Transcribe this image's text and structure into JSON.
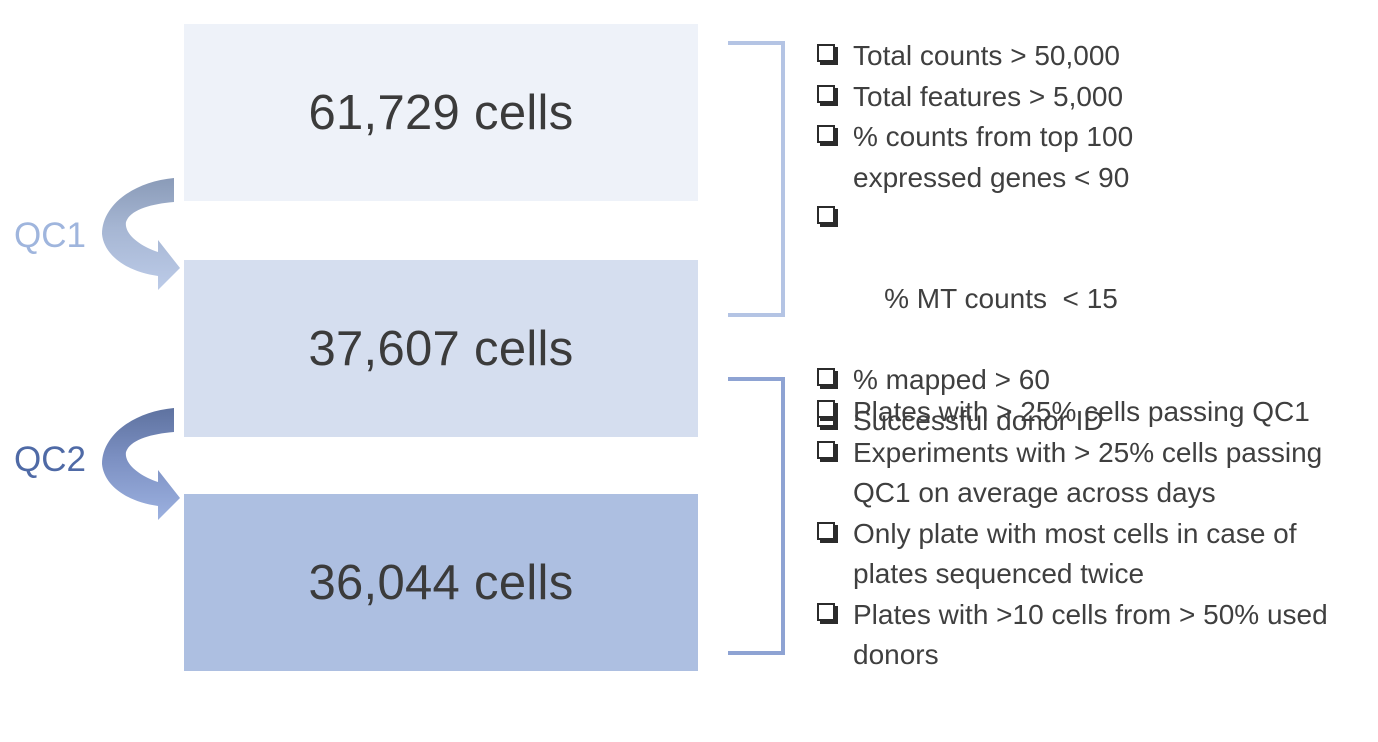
{
  "stages": [
    {
      "label": "61,729 cells"
    },
    {
      "label": "37,607 cells"
    },
    {
      "label": "36,044 cells"
    }
  ],
  "qc_steps": [
    {
      "label": "QC1",
      "color": "#9fb5dd",
      "criteria": [
        "Total counts > 50,000",
        "Total features > 5,000",
        "% counts from top 100 expressed genes < 90",
        "% MT counts  < 15",
        "% mapped > 60",
        "Successful donor ID"
      ]
    },
    {
      "label": "QC2",
      "color": "#4f6aa6",
      "criteria": [
        "Plates with > 25% cells passing QC1",
        "Experiments with > 25% cells passing QC1 on average across days",
        "Only plate with most cells in case of plates sequenced twice",
        "Plates with >10 cells from > 50% used donors"
      ]
    }
  ],
  "colors": {
    "stage1_fill": "#eef2f9",
    "stage2_fill": "#d5deef",
    "stage3_fill": "#adbfe1",
    "bracket1": "#b4c4e4",
    "bracket2": "#8ea3d3"
  },
  "icons": {
    "qc_arrow": "curved-arrow-icon",
    "criterion_marker": "checkbox-icon"
  }
}
